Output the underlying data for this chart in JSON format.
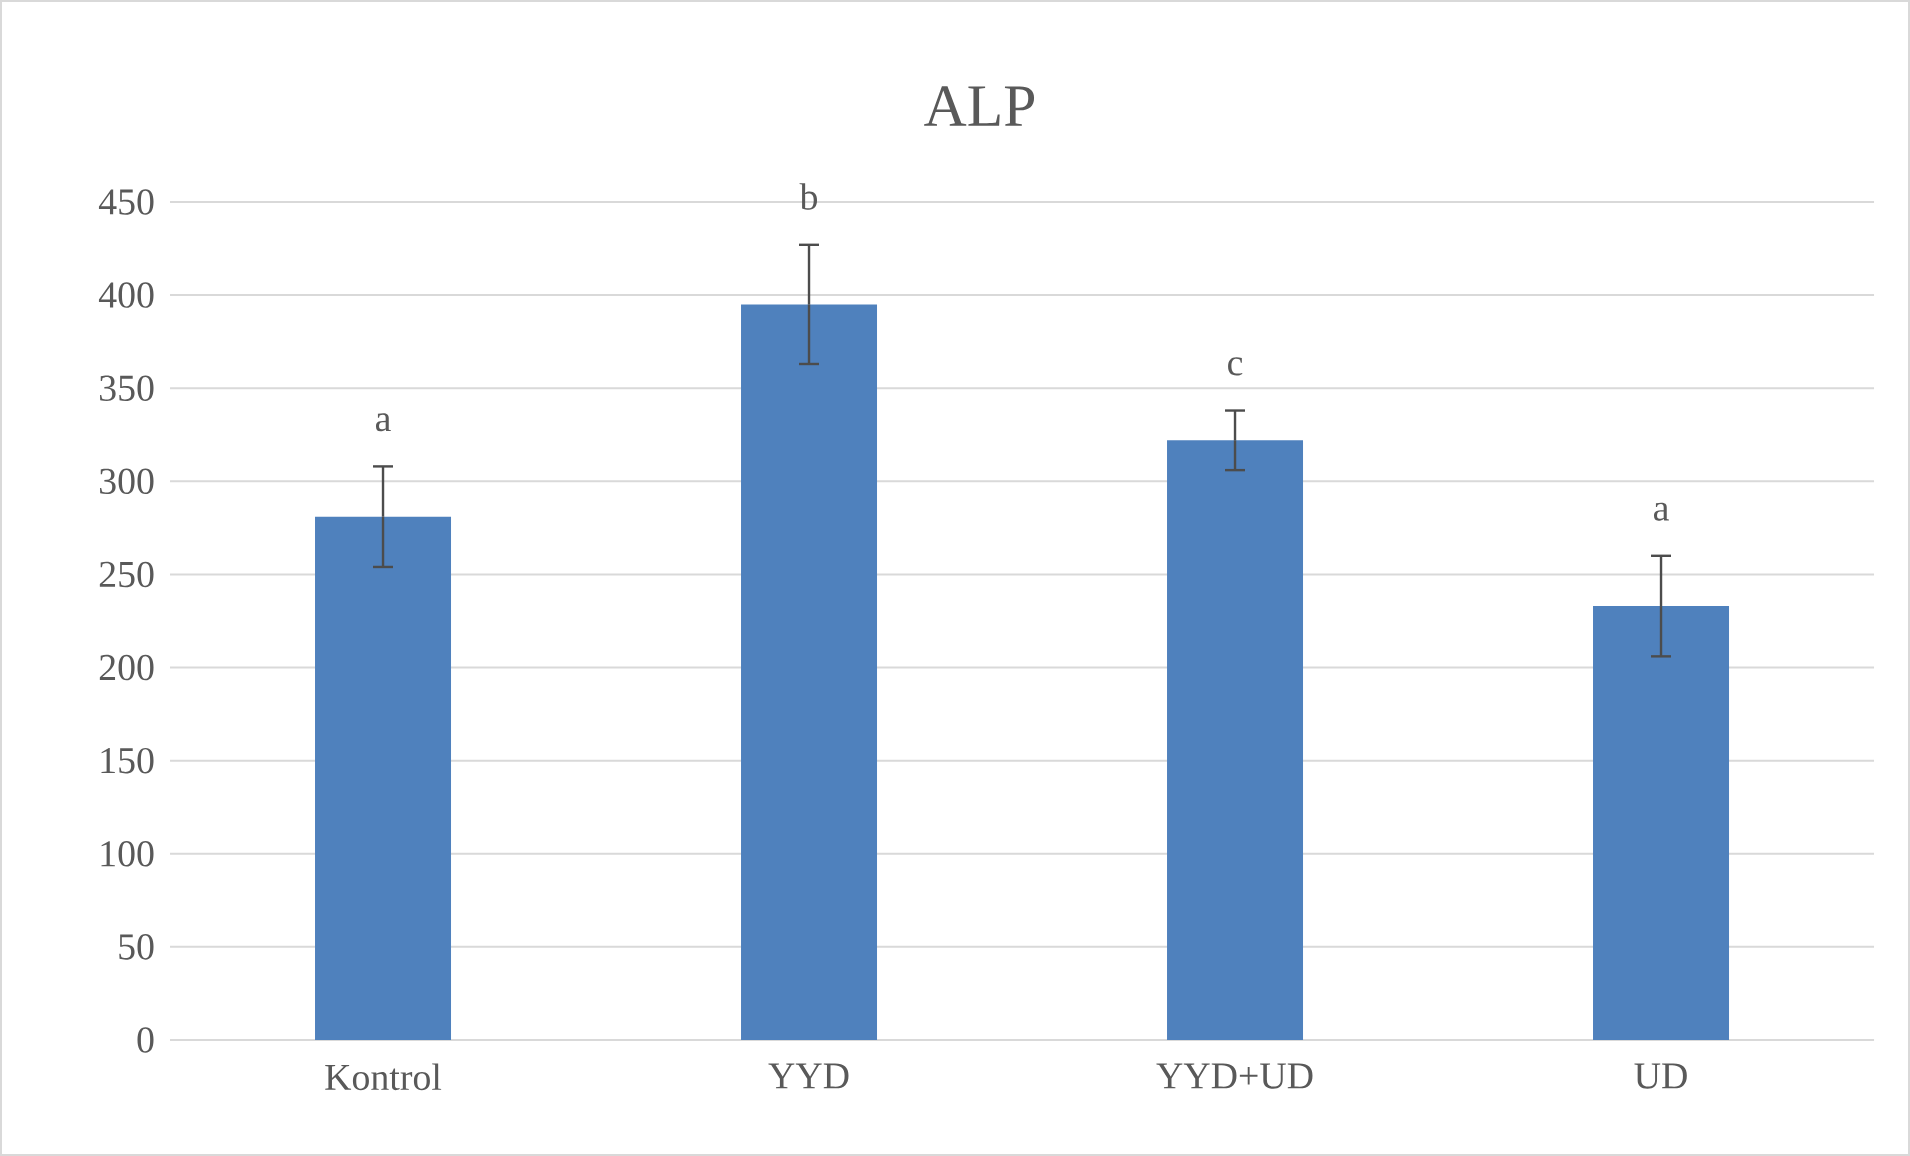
{
  "chart_data": {
    "type": "bar",
    "title": "ALP",
    "categories": [
      "Kontrol",
      "YYD",
      "YYD+UD",
      "UD"
    ],
    "values": [
      281,
      395,
      322,
      233
    ],
    "errors": [
      27,
      32,
      16,
      27
    ],
    "color": "#4f81bd",
    "ylim": [
      0,
      450
    ],
    "yticks": [
      0,
      50,
      100,
      150,
      200,
      250,
      300,
      350,
      400,
      450
    ],
    "grid": "y",
    "annotations": [
      "a",
      "b",
      "c",
      "a"
    ]
  }
}
